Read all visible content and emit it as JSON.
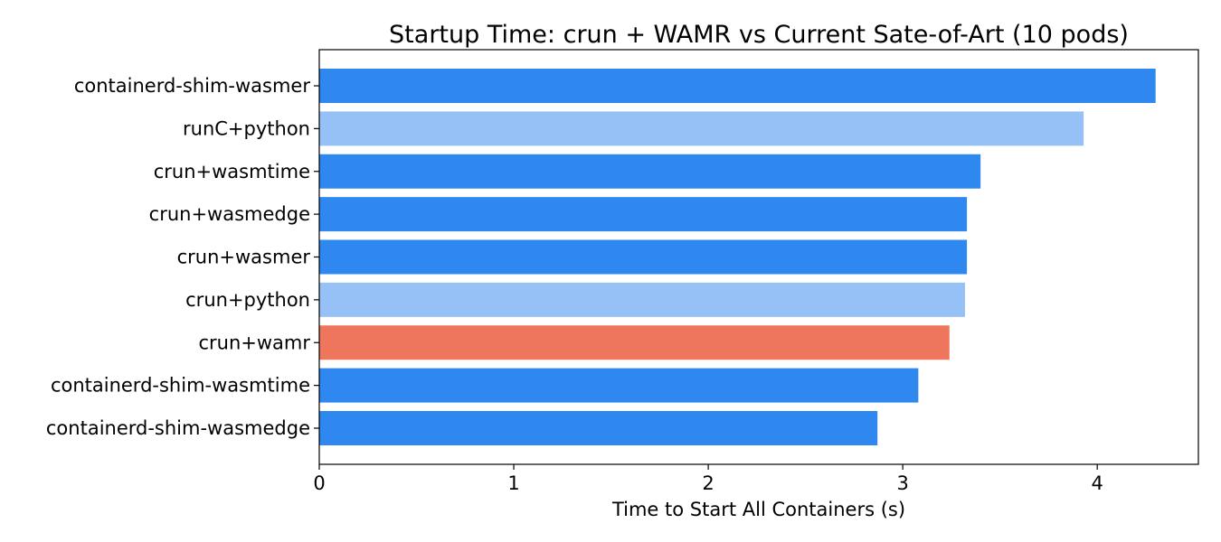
{
  "chart_data": {
    "type": "bar",
    "orientation": "horizontal",
    "title": "Startup Time: crun + WAMR vs Current Sate-of-Art (10 pods)",
    "xlabel": "Time to Start All Containers (s)",
    "ylabel": "",
    "xlim": [
      0,
      4.52
    ],
    "xticks": [
      0,
      1,
      2,
      3,
      4
    ],
    "grid": false,
    "categories": [
      "containerd-shim-wasmer",
      "runC+python",
      "crun+wasmtime",
      "crun+wasmedge",
      "crun+wasmer",
      "crun+python",
      "crun+wamr",
      "containerd-shim-wasmtime",
      "containerd-shim-wasmedge"
    ],
    "values": [
      4.3,
      3.93,
      3.4,
      3.33,
      3.33,
      3.32,
      3.24,
      3.08,
      2.87
    ],
    "colors": [
      "#2e88f0",
      "#96c1f6",
      "#2e88f0",
      "#2e88f0",
      "#2e88f0",
      "#96c1f6",
      "#ee765c",
      "#2e88f0",
      "#2e88f0"
    ]
  }
}
